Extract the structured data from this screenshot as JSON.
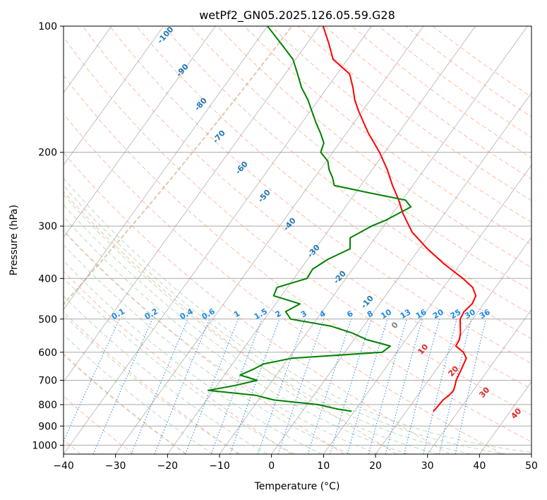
{
  "chart_data": {
    "type": "line",
    "title": "wetPf2_GN05.2025.126.05.59.G28",
    "xlabel": "Temperature (°C)",
    "ylabel": "Pressure (hPa)",
    "xlim": [
      -40,
      50
    ],
    "ylim": [
      1050,
      100
    ],
    "y_scale": "log",
    "x_ticks": [
      -40,
      -30,
      -20,
      -10,
      0,
      10,
      20,
      30,
      40,
      50
    ],
    "y_ticks": [
      100,
      200,
      300,
      400,
      500,
      600,
      700,
      800,
      900,
      1000
    ],
    "grid": true,
    "series": [
      {
        "name": "",
        "role": "temperature",
        "color": "#ff0000",
        "p": [
          830,
          820,
          780,
          760,
          740,
          720,
          700,
          660,
          620,
          600,
          580,
          560,
          540,
          520,
          500,
          480,
          460,
          440,
          420,
          400,
          370,
          340,
          310,
          280,
          260,
          240,
          220,
          200,
          180,
          160,
          150,
          140,
          130,
          120,
          110,
          100
        ],
        "t": [
          25.2,
          25.3,
          25.5,
          26.0,
          26.2,
          25.8,
          25.3,
          24.8,
          24.2,
          22.8,
          20.5,
          20.3,
          19.6,
          18.6,
          17.6,
          17.3,
          17.8,
          17.4,
          15.6,
          12.5,
          7.0,
          1.6,
          -3.7,
          -8.0,
          -10.7,
          -13.9,
          -17.1,
          -21.0,
          -25.8,
          -30.6,
          -33.0,
          -35.1,
          -37.6,
          -42.8,
          -45.8,
          -49.3
        ]
      },
      {
        "name": "",
        "role": "dewpoint",
        "color": "#008000",
        "p": [
          830,
          820,
          800,
          780,
          760,
          740,
          720,
          700,
          680,
          660,
          640,
          620,
          600,
          580,
          560,
          540,
          520,
          500,
          480,
          460,
          440,
          420,
          400,
          380,
          360,
          340,
          320,
          300,
          290,
          280,
          270,
          260,
          250,
          240,
          230,
          220,
          210,
          200,
          190,
          180,
          170,
          160,
          150,
          140,
          130,
          120,
          110,
          100
        ],
        "td": [
          9.5,
          6.5,
          2.1,
          -7.0,
          -11.2,
          -21.0,
          -16.5,
          -13.0,
          -17.0,
          -15.3,
          -14.0,
          -9.3,
          7.2,
          7.9,
          2.5,
          -1.2,
          -6.2,
          -15.0,
          -17.0,
          -15.3,
          -21.5,
          -22.0,
          -17.5,
          -17.7,
          -16.1,
          -13.3,
          -14.8,
          -12.3,
          -10.3,
          -8.9,
          -7.4,
          -9.4,
          -17.3,
          -25.1,
          -26.5,
          -28.3,
          -29.7,
          -32.3,
          -33.0,
          -35.0,
          -37.3,
          -39.6,
          -42.0,
          -45.0,
          -47.6,
          -50.5,
          -55.0,
          -60.0
        ]
      }
    ],
    "dry_adiabat_labels": [
      "-100",
      "-90",
      "-80",
      "-70",
      "-60",
      "-50",
      "-40",
      "-30",
      "-20",
      "-10",
      "0",
      "10",
      "20",
      "30",
      "40"
    ],
    "mixing_ratio_labels": [
      "0.1",
      "0.2",
      "0.4",
      "0.6",
      "1",
      "1.5",
      "2",
      "3",
      "4",
      "6",
      "8",
      "10",
      "13",
      "16",
      "20",
      "25",
      "30",
      "36"
    ],
    "moist_adiabat_labels_red": [
      "10",
      "20",
      "30",
      "40"
    ],
    "moist_adiabat_label_grey": "0",
    "colors": {
      "dry_adiabat_label": "#1f77b4",
      "mixing_ratio": "#1e88e5",
      "moist_adiabat_label": "#d62728",
      "dry_adiabat_line": "#ff8c69",
      "moist_adiabat_line": "#7fbf7f",
      "isotherm": "#7f7f7f",
      "isobar": "#aaaaaa",
      "lcl_curve": "#d2b48c"
    }
  }
}
